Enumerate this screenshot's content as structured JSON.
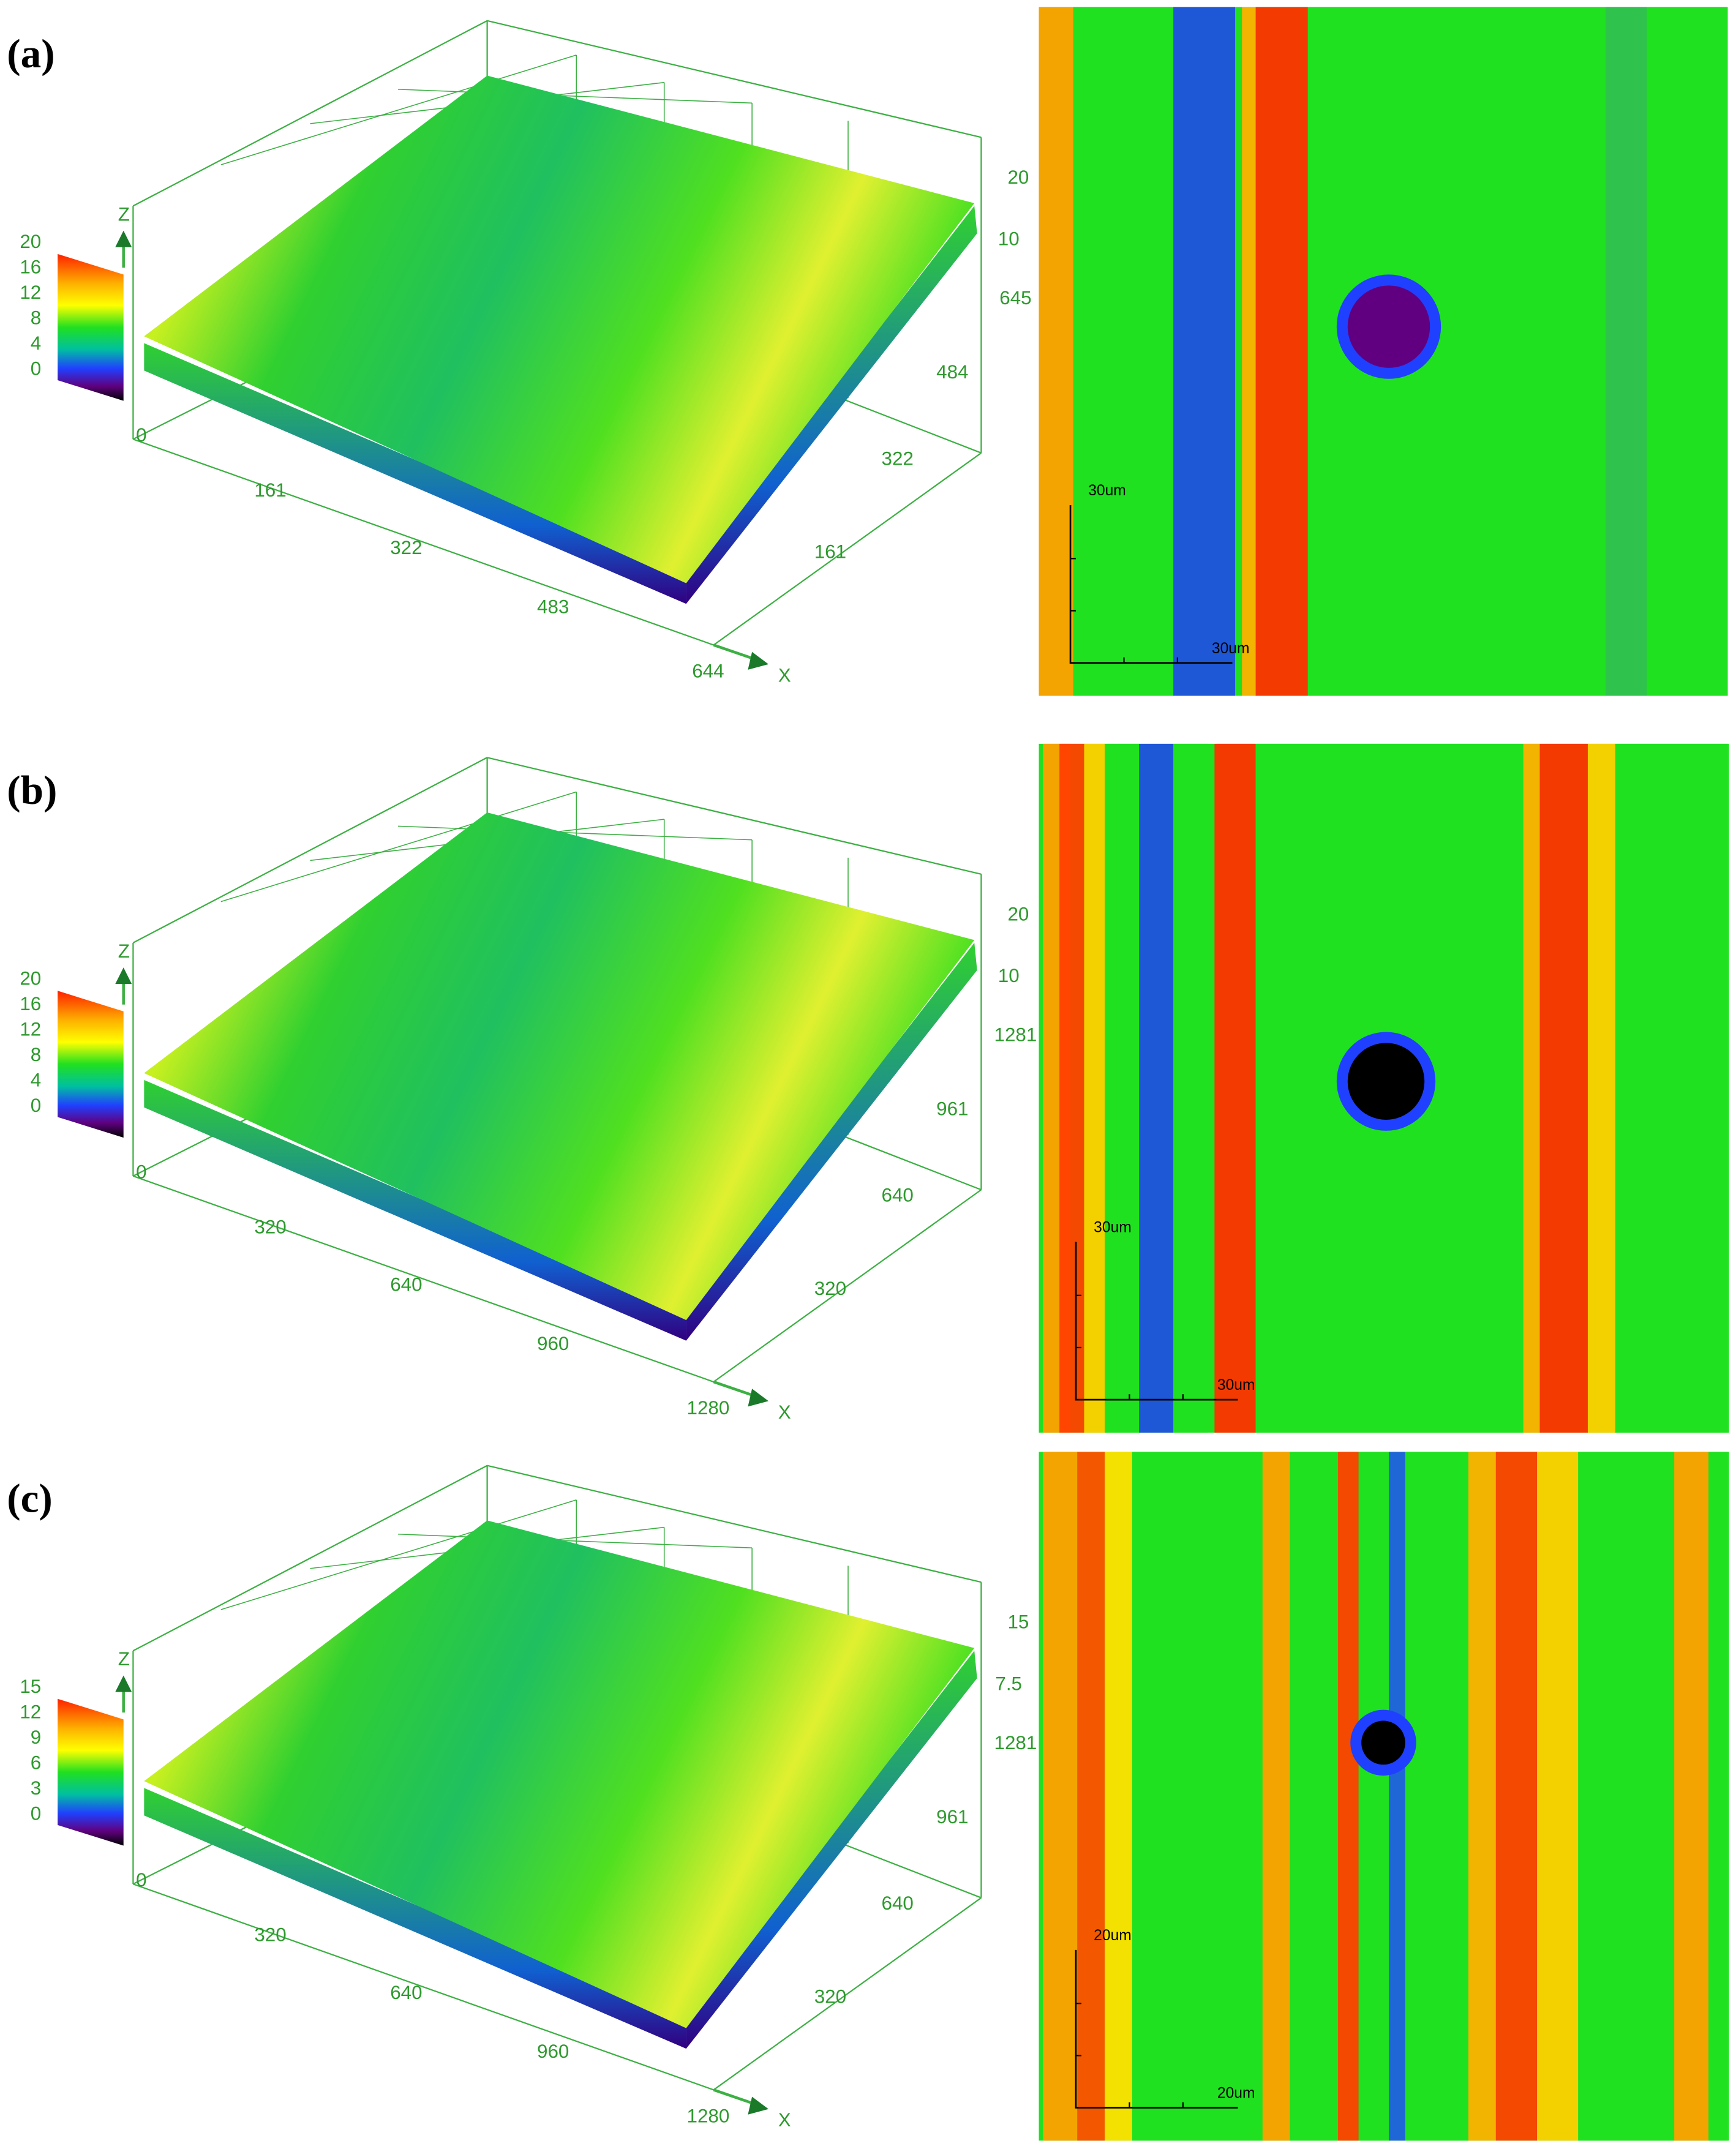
{
  "panels": [
    {
      "label": "(a)",
      "colorbar_ticks": [
        "20",
        "16",
        "12",
        "8",
        "4",
        "0"
      ],
      "z_axis_label": "Z",
      "x_axis_label": "X",
      "x_ticks": [
        "0",
        "161",
        "322",
        "483",
        "644"
      ],
      "y_ticks": [
        "645",
        "484",
        "322",
        "161"
      ],
      "z_ticks": [
        "20",
        "10"
      ],
      "scale_bar_labels": [
        "30um",
        "30um"
      ]
    },
    {
      "label": "(b)",
      "colorbar_ticks": [
        "20",
        "16",
        "12",
        "8",
        "4",
        "0"
      ],
      "z_axis_label": "Z",
      "x_axis_label": "X",
      "x_ticks": [
        "0",
        "320",
        "640",
        "960",
        "1280"
      ],
      "y_ticks": [
        "1281",
        "961",
        "640",
        "320"
      ],
      "z_ticks": [
        "20",
        "10"
      ],
      "scale_bar_labels": [
        "30um",
        "30um"
      ]
    },
    {
      "label": "(c)",
      "colorbar_ticks": [
        "15",
        "12",
        "9",
        "6",
        "3",
        "0"
      ],
      "z_axis_label": "Z",
      "x_axis_label": "X",
      "x_ticks": [
        "0",
        "320",
        "640",
        "960",
        "1280"
      ],
      "y_ticks": [
        "1281",
        "961",
        "640",
        "320"
      ],
      "z_ticks": [
        "15",
        "7.5"
      ],
      "scale_bar_labels": [
        "20um",
        "20um"
      ]
    }
  ]
}
